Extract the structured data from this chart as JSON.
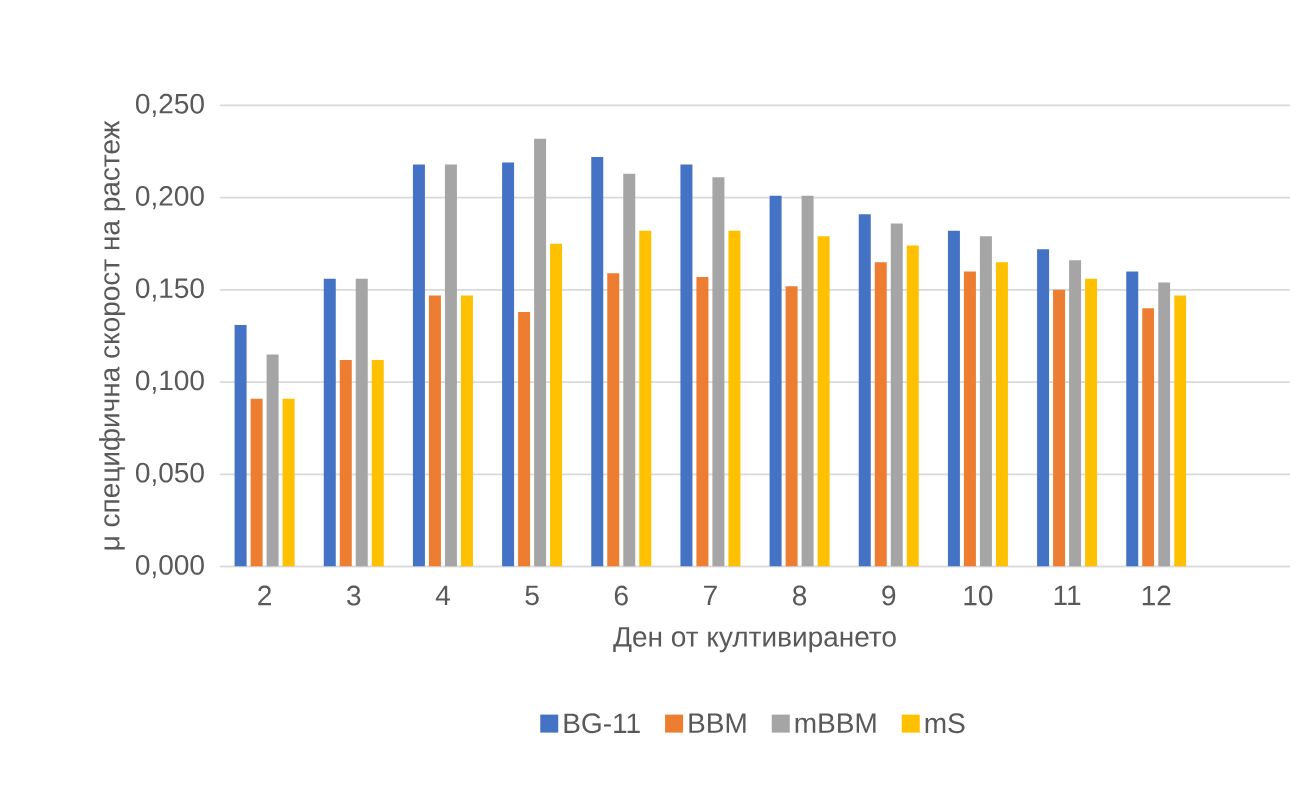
{
  "chart_data": {
    "type": "bar",
    "xlabel": "Ден от култивирането",
    "ylabel": "μ специфична скорост на растеж",
    "categories": [
      "2",
      "3",
      "4",
      "5",
      "6",
      "7",
      "8",
      "9",
      "10",
      "11",
      "12",
      null
    ],
    "series": [
      {
        "name": "BG-11",
        "color": "#4472c4",
        "values": [
          0.131,
          0.156,
          0.218,
          0.219,
          0.222,
          0.218,
          0.201,
          0.191,
          0.182,
          0.172,
          0.16,
          null
        ]
      },
      {
        "name": "BBM",
        "color": "#ed7d31",
        "values": [
          0.091,
          0.112,
          0.147,
          0.138,
          0.159,
          0.157,
          0.152,
          0.165,
          0.16,
          0.15,
          0.14,
          null
        ]
      },
      {
        "name": "mBBM",
        "color": "#a5a5a5",
        "values": [
          0.115,
          0.156,
          0.218,
          0.232,
          0.213,
          0.211,
          0.201,
          0.186,
          0.179,
          0.166,
          0.154,
          null
        ]
      },
      {
        "name": "mS",
        "color": "#ffc000",
        "values": [
          0.091,
          0.112,
          0.147,
          0.175,
          0.182,
          0.182,
          0.179,
          0.174,
          0.165,
          0.156,
          0.147,
          null
        ]
      }
    ],
    "ylim": [
      0,
      0.25
    ],
    "yticks": [
      {
        "value": 0,
        "label": "0,000"
      },
      {
        "value": 0.05,
        "label": "0,050"
      },
      {
        "value": 0.1,
        "label": "0,100"
      },
      {
        "value": 0.15,
        "label": "0,150"
      },
      {
        "value": 0.2,
        "label": "0,200"
      },
      {
        "value": 0.25,
        "label": "0,250"
      }
    ],
    "grid": "y",
    "legend": "bottom"
  }
}
